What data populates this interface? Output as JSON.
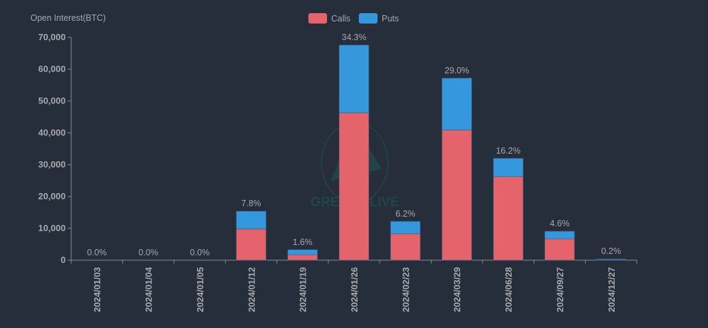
{
  "chart_data": {
    "type": "bar",
    "stacked": true,
    "title": "",
    "ylabel": "Open Interest(BTC)",
    "xlabel": "",
    "ylim": [
      0,
      70000
    ],
    "yticks": [
      0,
      10000,
      20000,
      30000,
      40000,
      50000,
      60000,
      70000
    ],
    "ytick_labels": [
      "0",
      "10,000",
      "20,000",
      "30,000",
      "40,000",
      "50,000",
      "60,000",
      "70,000"
    ],
    "legend": {
      "position": "top-center",
      "entries": [
        "Calls",
        "Puts"
      ]
    },
    "categories": [
      "2024/01/03",
      "2024/01/04",
      "2024/01/05",
      "2024/01/12",
      "2024/01/19",
      "2024/01/26",
      "2024/02/23",
      "2024/03/29",
      "2024/06/28",
      "2024/09/27",
      "2024/12/27"
    ],
    "series": [
      {
        "name": "Calls",
        "color": "#e5636a",
        "values": [
          0,
          0,
          0,
          9800,
          1700,
          46300,
          8300,
          40900,
          26300,
          6700,
          250
        ]
      },
      {
        "name": "Puts",
        "color": "#3598dc",
        "values": [
          0,
          0,
          0,
          5600,
          1600,
          21300,
          3900,
          16300,
          5700,
          2400,
          150
        ]
      }
    ],
    "data_labels": [
      "0.0%",
      "0.0%",
      "0.0%",
      "7.8%",
      "1.6%",
      "34.3%",
      "6.2%",
      "29.0%",
      "16.2%",
      "4.6%",
      "0.2%"
    ],
    "watermark": "GREEKS.LIVE"
  }
}
